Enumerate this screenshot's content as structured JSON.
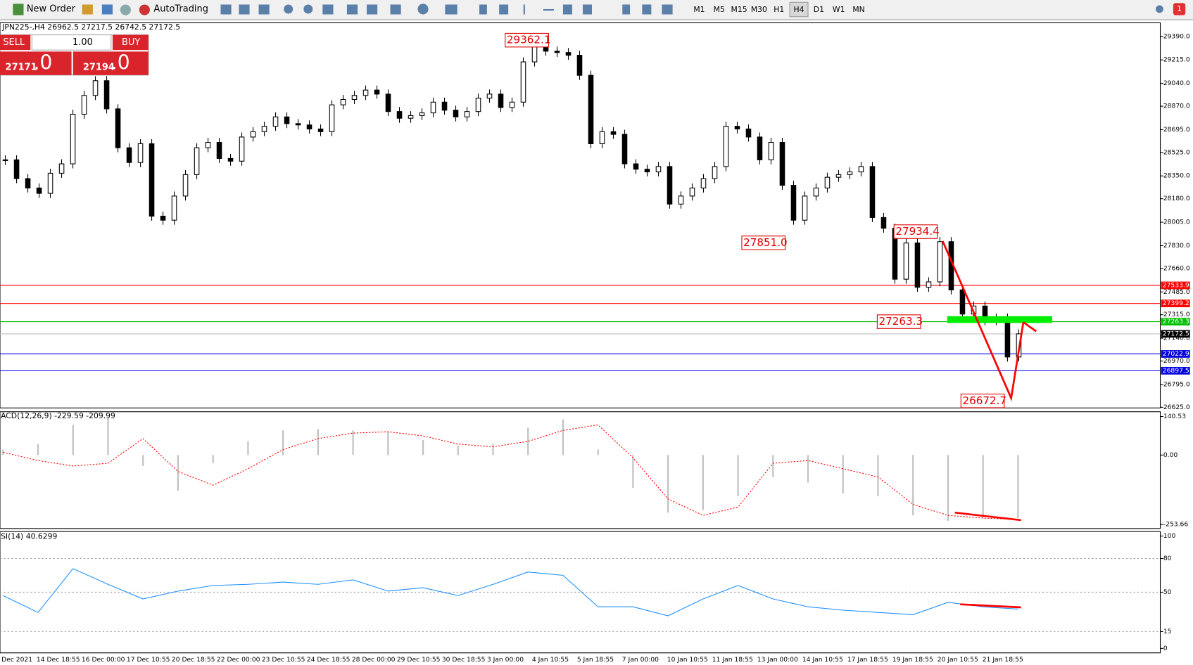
{
  "toolbar": {
    "new_order": "New Order",
    "autotrading": "AutoTrading",
    "timeframes": [
      "M1",
      "M5",
      "M15",
      "M30",
      "H1",
      "H4",
      "D1",
      "W1",
      "MN"
    ],
    "notifications": "1"
  },
  "trade_panel": {
    "sell": "SELL",
    "buy": "BUY",
    "lot": "1.00",
    "sell_price": "27171",
    "sell_fraction": ".0",
    "buy_price": "27194",
    "buy_fraction": ".0"
  },
  "chart_data": [
    {
      "type": "candlestick",
      "title": "JPN225-,H4  26962.5 27217.5 26742.5 27172.5",
      "close": [
        28470,
        28330,
        28260,
        28220,
        28370,
        28440,
        28810,
        28950,
        29060,
        28850,
        28560,
        28450,
        28590,
        28050,
        28020,
        28200,
        28360,
        28560,
        28600,
        28480,
        28460,
        28640,
        28680,
        28720,
        28790,
        28740,
        28730,
        28700,
        28680,
        28880,
        28920,
        28950,
        28990,
        28960,
        28830,
        28780,
        28800,
        28820,
        28900,
        28840,
        28790,
        28830,
        28930,
        28960,
        28860,
        28900,
        29200,
        29320,
        29280,
        29270,
        29250,
        29100,
        28590,
        28680,
        28660,
        28440,
        28400,
        28380,
        28420,
        28140,
        28200,
        28260,
        28330,
        28420,
        28720,
        28700,
        28640,
        28470,
        28600,
        28280,
        28020,
        28200,
        28260,
        28340,
        28360,
        28380,
        28420,
        28040,
        27960,
        27580,
        27850,
        27520,
        27560,
        27860,
        27500,
        27320,
        27380,
        27270,
        27290,
        27000,
        27172.5
      ],
      "ylim": [
        26620,
        29492
      ],
      "yticks": [
        {
          "value": 29390,
          "label": "29390.0"
        },
        {
          "value": 29215,
          "label": "29215.0"
        },
        {
          "value": 29040,
          "label": "29040.0"
        },
        {
          "value": 28870,
          "label": "28870.0"
        },
        {
          "value": 28695,
          "label": "28695.0"
        },
        {
          "value": 28525,
          "label": "28525.0"
        },
        {
          "value": 28350,
          "label": "28350.0"
        },
        {
          "value": 28180,
          "label": "28180.0"
        },
        {
          "value": 28005,
          "label": "28005.0"
        },
        {
          "value": 27830,
          "label": "27830.0"
        },
        {
          "value": 27660,
          "label": "27660.0"
        },
        {
          "value": 27485,
          "label": "27485.0"
        },
        {
          "value": 27315,
          "label": "27315.0"
        },
        {
          "value": 27140,
          "label": "27140.0"
        },
        {
          "value": 26970,
          "label": "26970.0"
        },
        {
          "value": 26795,
          "label": "26795.0"
        },
        {
          "value": 26625,
          "label": "26625.0"
        }
      ],
      "levels": [
        {
          "value": 27533.9,
          "color": "#ff0000"
        },
        {
          "value": 27399.2,
          "color": "#ff0000"
        },
        {
          "value": 27263.3,
          "color": "#00c000"
        },
        {
          "value": 27172.5,
          "color": "#000000"
        },
        {
          "value": 27022.9,
          "color": "#0000dd"
        },
        {
          "value": 26897.5,
          "color": "#0000dd"
        }
      ],
      "annotations": [
        29362.1,
        {
          "value": 27851,
          "label": "27851.0"
        },
        27934.4,
        27263.3,
        26672.7
      ],
      "x_labels": [
        "Dec 2021",
        "14 Dec 18:55",
        "16 Dec 00:00",
        "17 Dec 10:55",
        "20 Dec 18:55",
        "22 Dec 00:00",
        "23 Dec 10:55",
        "24 Dec 18:55",
        "28 Dec 00:00",
        "29 Dec 10:55",
        "30 Dec 18:55",
        "3 Jan 00:00",
        "4 Jan 10:55",
        "5 Jan 18:55",
        "7 Jan 00:00",
        "10 Jan 10:55",
        "11 Jan 18:55",
        "13 Jan 00:00",
        "14 Jan 10:55",
        "17 Jan 18:55",
        "19 Jan 18:55",
        "20 Jan 10:55",
        "21 Jan 18:55"
      ],
      "up_color": "#ffffff",
      "down_color": "#000000"
    },
    {
      "type": "macd",
      "title": "ACD(12,26,9) -229.59 -209.99",
      "histogram": [
        20,
        40,
        110,
        135,
        -40,
        -130,
        -30,
        50,
        90,
        95,
        90,
        85,
        55,
        35,
        40,
        100,
        130,
        20,
        -120,
        -210,
        -200,
        -150,
        -80,
        -100,
        -140,
        -150,
        -220,
        -240,
        -230,
        -230
      ],
      "signal": [
        10,
        -20,
        -40,
        -30,
        60,
        -60,
        -110,
        -50,
        20,
        60,
        80,
        85,
        70,
        40,
        30,
        50,
        90,
        110,
        -10,
        -160,
        -220,
        -190,
        -30,
        -20,
        -50,
        -80,
        -180,
        -220,
        -230,
        -235
      ],
      "ylim": [
        -268,
        158
      ],
      "yticks": [
        140.53,
        {
          "value": 0,
          "label": "0.00"
        },
        -253.66
      ],
      "histogram_color": "#c0c0c0",
      "signal_color": "#ff0000"
    },
    {
      "type": "rsi",
      "title": "SI(14) 40.6299",
      "values": [
        47,
        32,
        71,
        57,
        44,
        51,
        56,
        57,
        59,
        57,
        61,
        51,
        54,
        47,
        57,
        68,
        65,
        37,
        37,
        29,
        44,
        56,
        44,
        37,
        34,
        32,
        30,
        41,
        37,
        35
      ],
      "ylim": [
        -4,
        104
      ],
      "yticks": [
        100,
        80,
        50,
        15,
        0
      ],
      "color": "#1e90ff"
    }
  ]
}
